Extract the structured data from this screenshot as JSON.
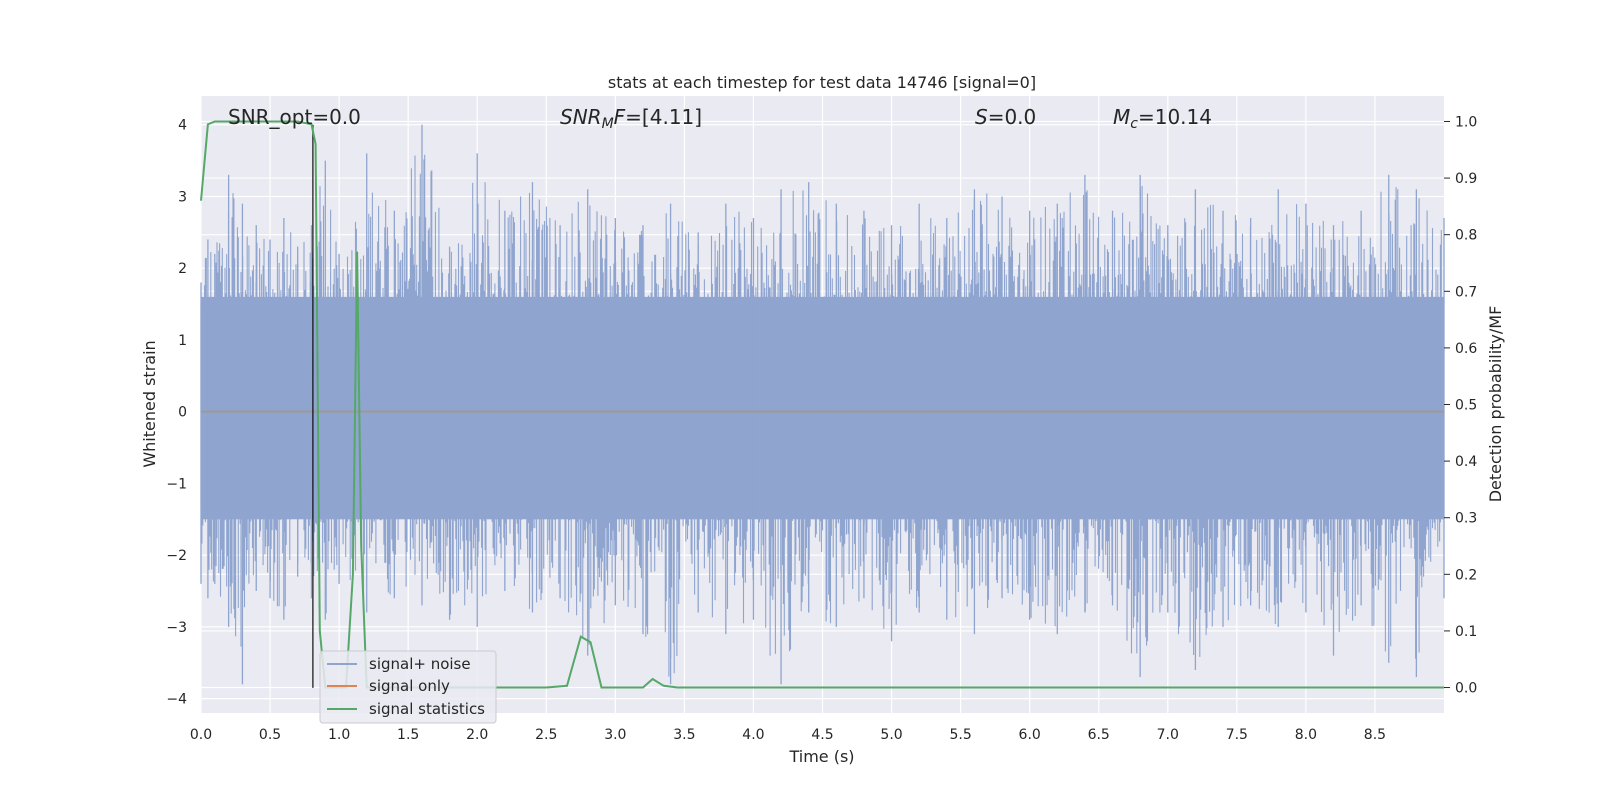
{
  "chart_data": {
    "type": "line",
    "title": "stats at each timestep for test data 14746 [signal=0]",
    "xlabel": "Time (s)",
    "ylabel": "Whitened strain",
    "y2label": "Detection probability/MF",
    "xlim": [
      0.0,
      9.0
    ],
    "ylim": [
      -4.2,
      4.4
    ],
    "y2lim": [
      -0.045,
      1.045
    ],
    "x_ticks": [
      "0.0",
      "0.5",
      "1.0",
      "1.5",
      "2.0",
      "2.5",
      "3.0",
      "3.5",
      "4.0",
      "4.5",
      "5.0",
      "5.5",
      "6.0",
      "6.5",
      "7.0",
      "7.5",
      "8.0",
      "8.5"
    ],
    "y_ticks": [
      "4",
      "3",
      "2",
      "1",
      "0",
      "−1",
      "−2",
      "−3",
      "−4"
    ],
    "y2_ticks": [
      "1.0",
      "0.9",
      "0.8",
      "0.7",
      "0.6",
      "0.5",
      "0.4",
      "0.3",
      "0.2",
      "0.1",
      "0.0"
    ],
    "grid": true,
    "legend_position": "lower-left",
    "annotations": {
      "snr_opt": "SNR_opt=0.0",
      "snr_mf_var": "SNR",
      "snr_mf_sub": "M",
      "snr_mf_tail": "F",
      "snr_mf_value": "=[4.11]",
      "s_var": "S",
      "s_value": "=0.0",
      "mc_var": "M",
      "mc_sub": "c",
      "mc_value": "=10.14"
    },
    "series": [
      {
        "name": "signal+ noise",
        "color": "#8fa5cf",
        "envelope": {
          "x": [
            0.0,
            0.05,
            0.1,
            0.2,
            0.3,
            0.4,
            0.5,
            0.6,
            0.7,
            0.8,
            0.9,
            1.0,
            1.2,
            1.4,
            1.6,
            1.8,
            2.0,
            2.2,
            2.4,
            2.6,
            2.8,
            3.0,
            3.2,
            3.4,
            3.6,
            3.8,
            4.0,
            4.2,
            4.4,
            4.6,
            4.8,
            5.0,
            5.2,
            5.4,
            5.6,
            5.8,
            6.0,
            6.2,
            6.4,
            6.6,
            6.8,
            7.0,
            7.2,
            7.4,
            7.6,
            7.8,
            8.0,
            8.2,
            8.4,
            8.6,
            8.8,
            9.0
          ],
          "upper": [
            1.8,
            2.4,
            2.2,
            3.3,
            2.9,
            2.6,
            2.4,
            2.7,
            2.3,
            2.6,
            3.5,
            2.2,
            3.6,
            2.8,
            4.0,
            2.3,
            3.6,
            2.8,
            3.2,
            2.6,
            3.1,
            2.7,
            2.6,
            2.9,
            2.5,
            2.9,
            2.7,
            3.1,
            3.2,
            2.9,
            2.8,
            2.6,
            2.9,
            2.7,
            3.1,
            3.0,
            2.8,
            2.9,
            3.3,
            2.8,
            3.3,
            2.6,
            3.1,
            2.8,
            2.7,
            3.1,
            2.9,
            2.6,
            2.8,
            3.3,
            3.1,
            2.7
          ],
          "lower": [
            -2.4,
            -2.6,
            -2.4,
            -3.0,
            -3.8,
            -2.5,
            -2.6,
            -2.9,
            -2.3,
            -2.6,
            -2.9,
            -2.4,
            -2.8,
            -2.6,
            -2.7,
            -2.9,
            -3.0,
            -2.5,
            -2.8,
            -2.6,
            -3.4,
            -2.7,
            -3.1,
            -3.8,
            -2.8,
            -3.1,
            -2.9,
            -3.8,
            -2.8,
            -3.0,
            -2.6,
            -3.2,
            -2.8,
            -2.9,
            -3.1,
            -2.6,
            -2.9,
            -3.1,
            -2.8,
            -2.7,
            -3.7,
            -2.8,
            -3.6,
            -3.0,
            -2.7,
            -3.0,
            -2.8,
            -3.4,
            -2.7,
            -3.5,
            -3.7,
            -2.6
          ]
        }
      },
      {
        "name": "signal only",
        "color": "#dd8452",
        "x": [
          0.0,
          9.0
        ],
        "y": [
          0.0,
          0.0
        ]
      },
      {
        "name": "signal statistics",
        "color": "#55a868",
        "axis": "right",
        "x": [
          0.0,
          0.05,
          0.1,
          0.2,
          0.3,
          0.4,
          0.5,
          0.6,
          0.7,
          0.8,
          0.83,
          0.86,
          0.9,
          0.95,
          1.0,
          1.05,
          1.1,
          1.13,
          1.16,
          1.2,
          1.3,
          1.5,
          2.0,
          2.5,
          2.65,
          2.75,
          2.82,
          2.9,
          3.0,
          3.2,
          3.27,
          3.35,
          3.45,
          4.0,
          5.0,
          6.0,
          7.0,
          8.0,
          9.0
        ],
        "y": [
          0.86,
          0.995,
          1.0,
          1.0,
          1.0,
          1.0,
          1.0,
          1.0,
          1.0,
          0.995,
          0.96,
          0.1,
          0.0,
          0.0,
          0.0,
          0.0,
          0.2,
          0.77,
          0.25,
          0.0,
          0.0,
          0.0,
          0.0,
          0.0,
          0.003,
          0.09,
          0.08,
          0.0,
          0.0,
          0.0,
          0.015,
          0.003,
          0.0,
          0.0,
          0.0,
          0.0,
          0.0,
          0.0,
          0.0
        ]
      }
    ],
    "markers": [
      {
        "name": "black vertical line",
        "x": 0.81,
        "y_range": [
          -3.85,
          4.0
        ],
        "color": "#000000"
      }
    ]
  }
}
